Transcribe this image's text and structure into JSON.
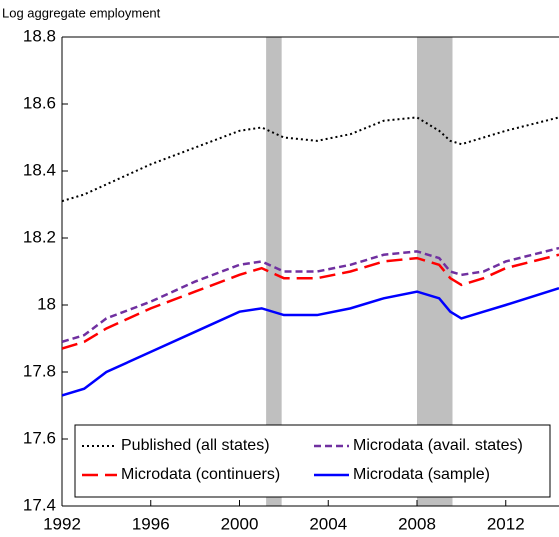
{
  "chart_data": {
    "type": "line",
    "y_label": "Log aggregate employment",
    "x": [
      1992,
      1993,
      1994,
      1996,
      1998,
      2000,
      2001,
      2002,
      2003.5,
      2005,
      2006.5,
      2008,
      2009,
      2009.5,
      2010,
      2011,
      2012,
      2014.4
    ],
    "series": [
      {
        "name": "Published (all states)",
        "color": "#000000",
        "style": "dotted",
        "values": [
          18.31,
          18.33,
          18.36,
          18.42,
          18.47,
          18.52,
          18.53,
          18.5,
          18.49,
          18.51,
          18.55,
          18.56,
          18.52,
          18.49,
          18.48,
          18.5,
          18.52,
          18.56
        ]
      },
      {
        "name": "Microdata (avail. states)",
        "color": "#7030a0",
        "style": "dashed",
        "values": [
          17.89,
          17.91,
          17.96,
          18.01,
          18.07,
          18.12,
          18.13,
          18.1,
          18.1,
          18.12,
          18.15,
          18.16,
          18.14,
          18.1,
          18.09,
          18.1,
          18.13,
          18.17
        ]
      },
      {
        "name": "Microdata (continuers)",
        "color": "#ff0000",
        "style": "longdash",
        "values": [
          17.87,
          17.89,
          17.93,
          17.99,
          18.04,
          18.09,
          18.11,
          18.08,
          18.08,
          18.1,
          18.13,
          18.14,
          18.12,
          18.08,
          18.06,
          18.08,
          18.11,
          18.15
        ]
      },
      {
        "name": "Microdata (sample)",
        "color": "#0000ff",
        "style": "solid",
        "values": [
          17.73,
          17.75,
          17.8,
          17.86,
          17.92,
          17.98,
          17.99,
          17.97,
          17.97,
          17.99,
          18.02,
          18.04,
          18.02,
          17.98,
          17.96,
          17.98,
          18.0,
          18.05
        ]
      }
    ],
    "shaded_periods": [
      [
        2001.2,
        2001.9
      ],
      [
        2008.0,
        2009.6
      ]
    ],
    "shade_color": "#bfbfbf",
    "xlim": [
      1992,
      2014.4
    ],
    "xticks": [
      1992,
      1996,
      2000,
      2004,
      2008,
      2012
    ],
    "ylim": [
      17.4,
      18.8
    ],
    "yticks": [
      17.4,
      17.6,
      17.8,
      18,
      18.2,
      18.4,
      18.6,
      18.8
    ],
    "grid": false,
    "legend": "lower left"
  }
}
